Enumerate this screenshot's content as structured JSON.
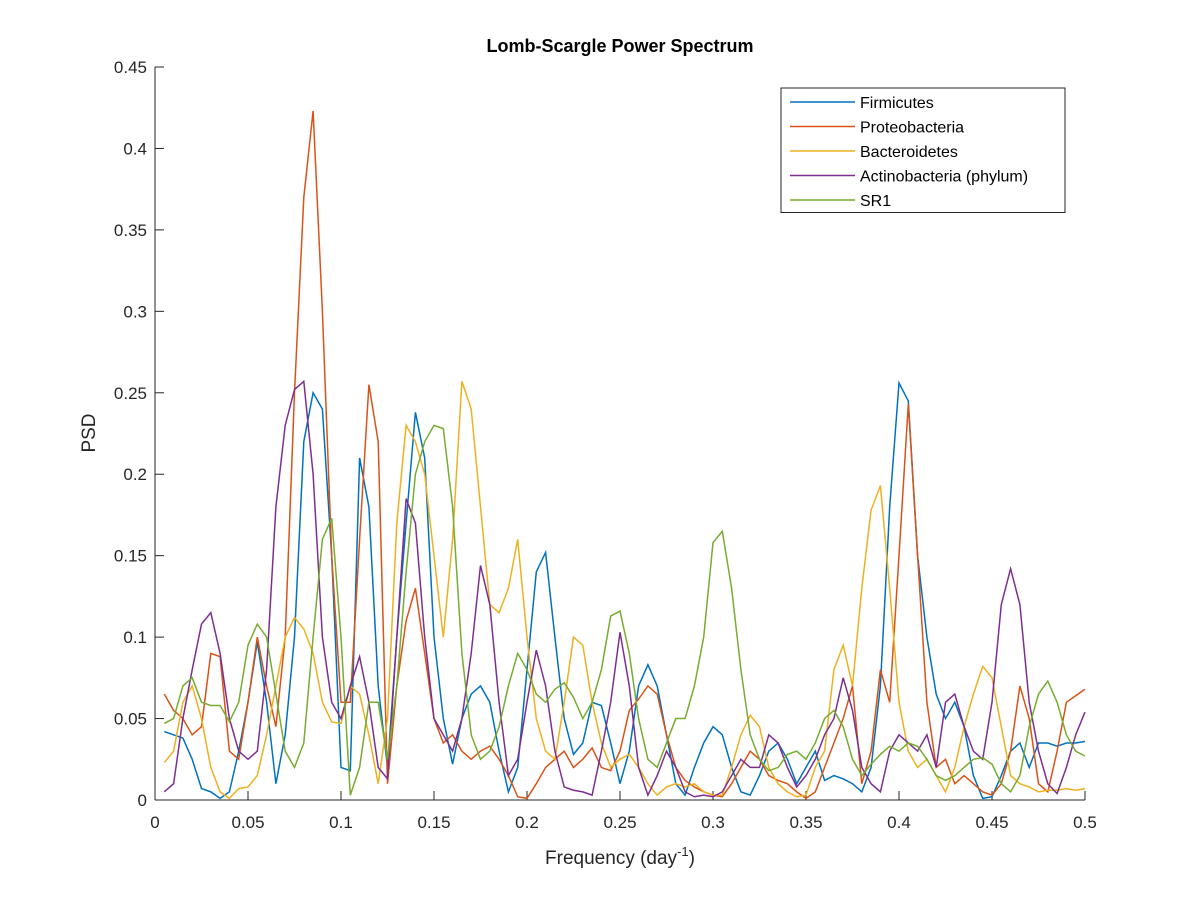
{
  "chart_data": {
    "type": "line",
    "title": "Lomb-Scargle Power Spectrum",
    "xlabel": [
      "Frequency (day",
      "-1",
      ")"
    ],
    "ylabel": "PSD",
    "xlim": [
      0,
      0.5
    ],
    "ylim": [
      0,
      0.45
    ],
    "xticks": [
      0,
      0.05,
      0.1,
      0.15,
      0.2,
      0.25,
      0.3,
      0.35,
      0.4,
      0.45,
      0.5
    ],
    "yticks": [
      0,
      0.05,
      0.1,
      0.15,
      0.2,
      0.25,
      0.3,
      0.35,
      0.4,
      0.45
    ],
    "legend": "upper right",
    "x": [
      0.005,
      0.01,
      0.015,
      0.02,
      0.025,
      0.03,
      0.035,
      0.04,
      0.045,
      0.05,
      0.055,
      0.06,
      0.065,
      0.07,
      0.075,
      0.08,
      0.085,
      0.09,
      0.095,
      0.1,
      0.105,
      0.11,
      0.115,
      0.12,
      0.125,
      0.13,
      0.135,
      0.14,
      0.145,
      0.15,
      0.155,
      0.16,
      0.165,
      0.17,
      0.175,
      0.18,
      0.185,
      0.19,
      0.195,
      0.2,
      0.205,
      0.21,
      0.215,
      0.22,
      0.225,
      0.23,
      0.235,
      0.24,
      0.245,
      0.25,
      0.255,
      0.26,
      0.265,
      0.27,
      0.275,
      0.28,
      0.285,
      0.29,
      0.295,
      0.3,
      0.305,
      0.31,
      0.315,
      0.32,
      0.325,
      0.33,
      0.335,
      0.34,
      0.345,
      0.35,
      0.355,
      0.36,
      0.365,
      0.37,
      0.375,
      0.38,
      0.385,
      0.39,
      0.395,
      0.4,
      0.405,
      0.41,
      0.415,
      0.42,
      0.425,
      0.43,
      0.435,
      0.44,
      0.445,
      0.45,
      0.455,
      0.46,
      0.465,
      0.47,
      0.475,
      0.48,
      0.485,
      0.49,
      0.495,
      0.5
    ],
    "series": [
      {
        "name": "Firmicutes",
        "color": "#0072BD",
        "values": [
          0.042,
          0.04,
          0.038,
          0.025,
          0.007,
          0.005,
          0.001,
          0.005,
          0.03,
          0.06,
          0.097,
          0.06,
          0.01,
          0.04,
          0.1,
          0.22,
          0.25,
          0.24,
          0.15,
          0.02,
          0.018,
          0.21,
          0.18,
          0.07,
          0.02,
          0.1,
          0.17,
          0.238,
          0.21,
          0.1,
          0.05,
          0.022,
          0.05,
          0.065,
          0.07,
          0.06,
          0.03,
          0.005,
          0.02,
          0.08,
          0.14,
          0.152,
          0.1,
          0.05,
          0.028,
          0.035,
          0.06,
          0.058,
          0.035,
          0.01,
          0.03,
          0.07,
          0.083,
          0.07,
          0.04,
          0.01,
          0.003,
          0.02,
          0.035,
          0.045,
          0.04,
          0.02,
          0.005,
          0.003,
          0.015,
          0.03,
          0.035,
          0.025,
          0.01,
          0.02,
          0.03,
          0.012,
          0.015,
          0.013,
          0.01,
          0.005,
          0.02,
          0.07,
          0.18,
          0.256,
          0.245,
          0.15,
          0.1,
          0.065,
          0.05,
          0.06,
          0.045,
          0.015,
          0.001,
          0.002,
          0.015,
          0.03,
          0.035,
          0.02,
          0.035,
          0.035,
          0.033,
          0.035,
          0.035,
          0.036
        ]
      },
      {
        "name": "Proteobacteria",
        "color": "#D95319",
        "values": [
          0.065,
          0.055,
          0.05,
          0.04,
          0.045,
          0.09,
          0.088,
          0.03,
          0.025,
          0.06,
          0.1,
          0.07,
          0.045,
          0.1,
          0.25,
          0.37,
          0.423,
          0.3,
          0.15,
          0.06,
          0.06,
          0.16,
          0.255,
          0.22,
          0.01,
          0.07,
          0.11,
          0.13,
          0.09,
          0.05,
          0.035,
          0.04,
          0.03,
          0.025,
          0.03,
          0.033,
          0.025,
          0.015,
          0.002,
          0.001,
          0.01,
          0.02,
          0.025,
          0.03,
          0.02,
          0.025,
          0.032,
          0.02,
          0.018,
          0.03,
          0.055,
          0.062,
          0.07,
          0.065,
          0.04,
          0.02,
          0.012,
          0.008,
          0.005,
          0.003,
          0.002,
          0.01,
          0.02,
          0.03,
          0.025,
          0.015,
          0.012,
          0.01,
          0.005,
          0.001,
          0.005,
          0.02,
          0.035,
          0.05,
          0.07,
          0.01,
          0.03,
          0.08,
          0.06,
          0.15,
          0.243,
          0.15,
          0.06,
          0.02,
          0.025,
          0.01,
          0.015,
          0.01,
          0.005,
          0.003,
          0.01,
          0.03,
          0.07,
          0.05,
          0.01,
          0.005,
          0.03,
          0.06,
          0.064,
          0.068
        ]
      },
      {
        "name": "Bacteroidetes",
        "color": "#EDB120",
        "values": [
          0.023,
          0.03,
          0.06,
          0.07,
          0.05,
          0.02,
          0.005,
          0.001,
          0.007,
          0.008,
          0.015,
          0.04,
          0.07,
          0.1,
          0.112,
          0.105,
          0.09,
          0.06,
          0.048,
          0.047,
          0.07,
          0.065,
          0.04,
          0.01,
          0.05,
          0.17,
          0.23,
          0.22,
          0.2,
          0.15,
          0.1,
          0.16,
          0.257,
          0.24,
          0.18,
          0.12,
          0.115,
          0.13,
          0.16,
          0.1,
          0.05,
          0.03,
          0.025,
          0.06,
          0.1,
          0.095,
          0.06,
          0.035,
          0.02,
          0.025,
          0.028,
          0.02,
          0.01,
          0.003,
          0.008,
          0.01,
          0.008,
          0.01,
          0.005,
          0.003,
          0.003,
          0.02,
          0.04,
          0.052,
          0.045,
          0.02,
          0.01,
          0.005,
          0.002,
          0.003,
          0.02,
          0.03,
          0.08,
          0.095,
          0.07,
          0.13,
          0.178,
          0.193,
          0.13,
          0.06,
          0.03,
          0.02,
          0.025,
          0.015,
          0.005,
          0.02,
          0.045,
          0.065,
          0.082,
          0.075,
          0.045,
          0.015,
          0.01,
          0.008,
          0.005,
          0.006,
          0.006,
          0.007,
          0.006,
          0.007
        ]
      },
      {
        "name": "Actinobacteria (phylum)",
        "color": "#7E2F8E",
        "values": [
          0.005,
          0.01,
          0.05,
          0.08,
          0.108,
          0.115,
          0.09,
          0.05,
          0.03,
          0.025,
          0.03,
          0.08,
          0.18,
          0.23,
          0.252,
          0.257,
          0.2,
          0.1,
          0.06,
          0.05,
          0.07,
          0.088,
          0.06,
          0.02,
          0.013,
          0.1,
          0.185,
          0.17,
          0.1,
          0.05,
          0.04,
          0.03,
          0.05,
          0.09,
          0.144,
          0.12,
          0.06,
          0.015,
          0.025,
          0.06,
          0.092,
          0.07,
          0.03,
          0.008,
          0.006,
          0.005,
          0.003,
          0.03,
          0.06,
          0.103,
          0.07,
          0.02,
          0.003,
          0.015,
          0.03,
          0.02,
          0.005,
          0.002,
          0.003,
          0.002,
          0.005,
          0.015,
          0.025,
          0.02,
          0.02,
          0.04,
          0.035,
          0.02,
          0.008,
          0.015,
          0.025,
          0.04,
          0.05,
          0.075,
          0.055,
          0.02,
          0.01,
          0.005,
          0.03,
          0.04,
          0.035,
          0.03,
          0.04,
          0.02,
          0.06,
          0.065,
          0.045,
          0.03,
          0.025,
          0.06,
          0.12,
          0.142,
          0.12,
          0.06,
          0.03,
          0.01,
          0.004,
          0.02,
          0.04,
          0.054
        ]
      },
      {
        "name": "SR1",
        "color": "#77AC30",
        "values": [
          0.047,
          0.05,
          0.07,
          0.075,
          0.06,
          0.058,
          0.058,
          0.048,
          0.06,
          0.095,
          0.108,
          0.1,
          0.065,
          0.03,
          0.02,
          0.035,
          0.1,
          0.16,
          0.173,
          0.1,
          0.003,
          0.02,
          0.06,
          0.06,
          0.025,
          0.07,
          0.14,
          0.2,
          0.22,
          0.23,
          0.228,
          0.18,
          0.09,
          0.04,
          0.025,
          0.03,
          0.045,
          0.07,
          0.09,
          0.08,
          0.065,
          0.06,
          0.068,
          0.072,
          0.063,
          0.05,
          0.06,
          0.08,
          0.113,
          0.116,
          0.09,
          0.05,
          0.025,
          0.02,
          0.035,
          0.05,
          0.05,
          0.07,
          0.1,
          0.158,
          0.165,
          0.13,
          0.08,
          0.04,
          0.025,
          0.018,
          0.02,
          0.028,
          0.03,
          0.025,
          0.035,
          0.05,
          0.055,
          0.045,
          0.025,
          0.015,
          0.022,
          0.028,
          0.033,
          0.03,
          0.035,
          0.033,
          0.025,
          0.015,
          0.012,
          0.015,
          0.02,
          0.025,
          0.026,
          0.022,
          0.01,
          0.005,
          0.015,
          0.045,
          0.065,
          0.073,
          0.06,
          0.04,
          0.03,
          0.027
        ]
      }
    ]
  }
}
